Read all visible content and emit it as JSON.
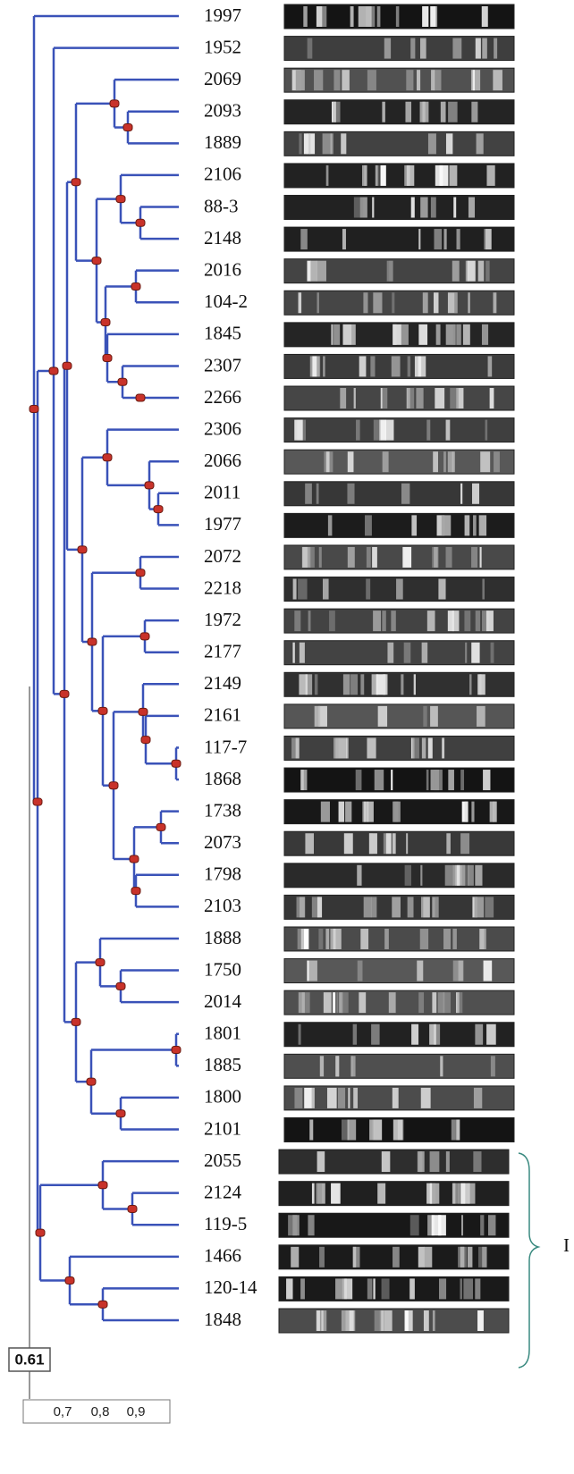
{
  "leaves": [
    "1997",
    "1952",
    "2069",
    "2093",
    "1889",
    "2106",
    "88-3",
    "2148",
    "2016",
    "104-2",
    "1845",
    "2307",
    "2266",
    "2306",
    "2066",
    "2011",
    "1977",
    "2072",
    "2218",
    "1972",
    "2177",
    "2149",
    "2161",
    "117-7",
    "1868",
    "1738",
    "2073",
    "1798",
    "2103",
    "1888",
    "1750",
    "2014",
    "1801",
    "1885",
    "1800",
    "2101",
    "2055",
    "2124",
    "119-5",
    "1466",
    "120-14",
    "1848"
  ],
  "scale_label": "0.61",
  "axis_ticks": [
    "0,7",
    "0,8",
    "0,9"
  ],
  "bracket_label": "I"
}
